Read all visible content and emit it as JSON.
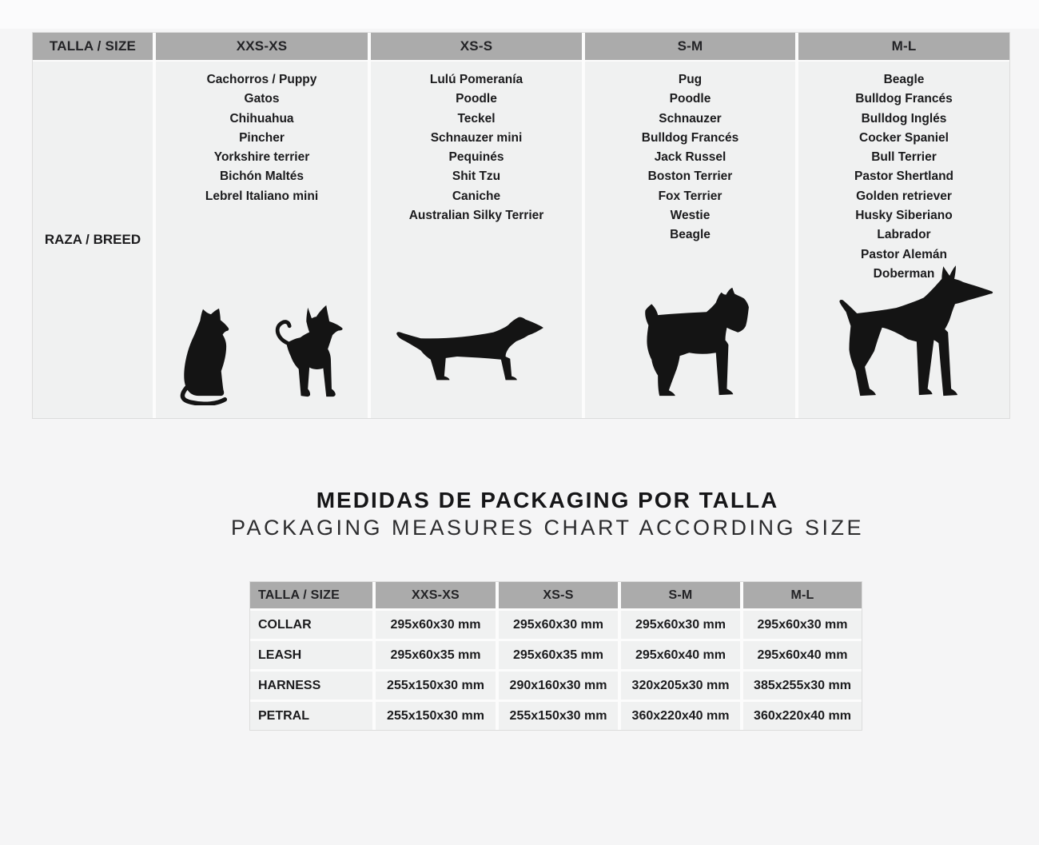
{
  "colors": {
    "page_background": "#f5f5f6",
    "header_background": "#ababab",
    "cell_background": "#f0f1f1",
    "silhouette": "#141414",
    "text": "#1b1b1d"
  },
  "size_chart": {
    "header": [
      "TALLA /  SIZE",
      "XXS-XS",
      "XS-S",
      "S-M",
      "M-L"
    ],
    "row_label": "RAZA / BREED",
    "columns": [
      {
        "size": "XXS-XS",
        "breeds": [
          "Cachorros / Puppy",
          "Gatos",
          "Chihuahua",
          "Pincher",
          "Yorkshire terrier",
          "Bichón Maltés",
          "Lebrel Italiano mini"
        ],
        "icons": [
          "cat-silhouette",
          "chihuahua-silhouette"
        ]
      },
      {
        "size": "XS-S",
        "breeds": [
          "Lulú Pomeranía",
          "Poodle",
          "Teckel",
          "Schnauzer mini",
          "Pequinés",
          "Shit Tzu",
          "Caniche",
          "Australian Silky Terrier"
        ],
        "icons": [
          "dachshund-silhouette"
        ]
      },
      {
        "size": "S-M",
        "breeds": [
          "Pug",
          "Poodle",
          "Schnauzer",
          "Bulldog Francés",
          "Jack Russel",
          "Boston Terrier",
          "Fox Terrier",
          "Westie",
          "Beagle"
        ],
        "icons": [
          "schnauzer-silhouette"
        ]
      },
      {
        "size": "M-L",
        "breeds": [
          "Beagle",
          "Bulldog Francés",
          "Bulldog Inglés",
          "Cocker Spaniel",
          "Bull Terrier",
          "Pastor Shertland",
          "Golden retriever",
          "Husky Siberiano",
          "Labrador",
          "Pastor Alemán",
          "Doberman"
        ],
        "icons": [
          "doberman-silhouette"
        ]
      }
    ]
  },
  "packaging": {
    "title": "MEDIDAS DE PACKAGING POR TALLA",
    "subtitle": "PACKAGING MEASURES CHART ACCORDING SIZE",
    "table": {
      "header": [
        "TALLA /  SIZE",
        "XXS-XS",
        "XS-S",
        "S-M",
        "M-L"
      ],
      "rows": [
        {
          "label": "COLLAR",
          "values": [
            "295x60x30 mm",
            "295x60x30 mm",
            "295x60x30 mm",
            "295x60x30 mm"
          ]
        },
        {
          "label": "LEASH",
          "values": [
            "295x60x35 mm",
            "295x60x35 mm",
            "295x60x40 mm",
            "295x60x40 mm"
          ]
        },
        {
          "label": "HARNESS",
          "values": [
            "255x150x30 mm",
            "290x160x30 mm",
            "320x205x30 mm",
            "385x255x30 mm"
          ]
        },
        {
          "label": "PETRAL",
          "values": [
            "255x150x30 mm",
            "255x150x30 mm",
            "360x220x40 mm",
            "360x220x40 mm"
          ]
        }
      ]
    }
  }
}
